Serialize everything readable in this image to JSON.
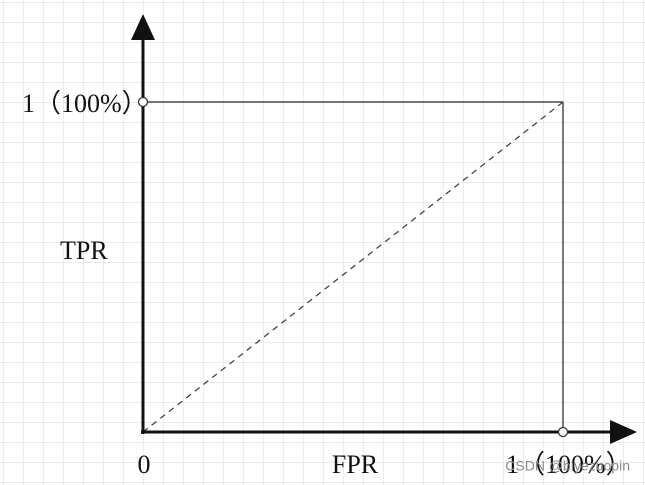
{
  "axes": {
    "y_max_label": "1（100%）",
    "y_label": "TPR",
    "origin_label": "0",
    "x_label": "FPR",
    "x_max_label": "1（100%）"
  },
  "watermark": "CSDN @biyezuopin"
}
